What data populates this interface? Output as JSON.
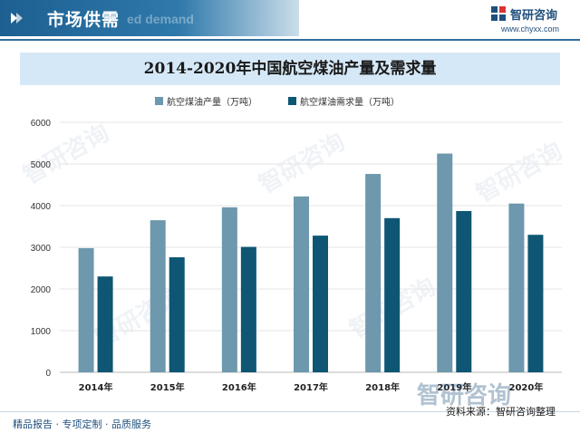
{
  "header": {
    "title": "市场供需",
    "watermark": "ed demand",
    "logo_name": "智研咨询",
    "logo_url": "www.chyxx.com"
  },
  "colors": {
    "supply": "#6d98ad",
    "demand": "#0e5674",
    "header_blue": "#1d5f91"
  },
  "chart_data": {
    "type": "bar",
    "title": "2014-2020年中国航空煤油产量及需求量",
    "categories": [
      "2014年",
      "2015年",
      "2016年",
      "2017年",
      "2018年",
      "2019年",
      "2020年"
    ],
    "series": [
      {
        "name": "航空煤油产量（万吨）",
        "values": [
          2980,
          3650,
          3960,
          4220,
          4760,
          5250,
          4050
        ]
      },
      {
        "name": "航空煤油需求量（万吨）",
        "values": [
          2300,
          2760,
          3010,
          3280,
          3700,
          3870,
          3300
        ]
      }
    ],
    "ylim": [
      0,
      6000
    ],
    "yticks": [
      0,
      1000,
      2000,
      3000,
      4000,
      5000,
      6000
    ],
    "grid": true,
    "legend_position": "top-center"
  },
  "footer": {
    "left": "精品报告 · 专项定制 · 品质服务",
    "source": "资料来源：智研咨询整理",
    "logo_watermark": "智研咨询"
  }
}
